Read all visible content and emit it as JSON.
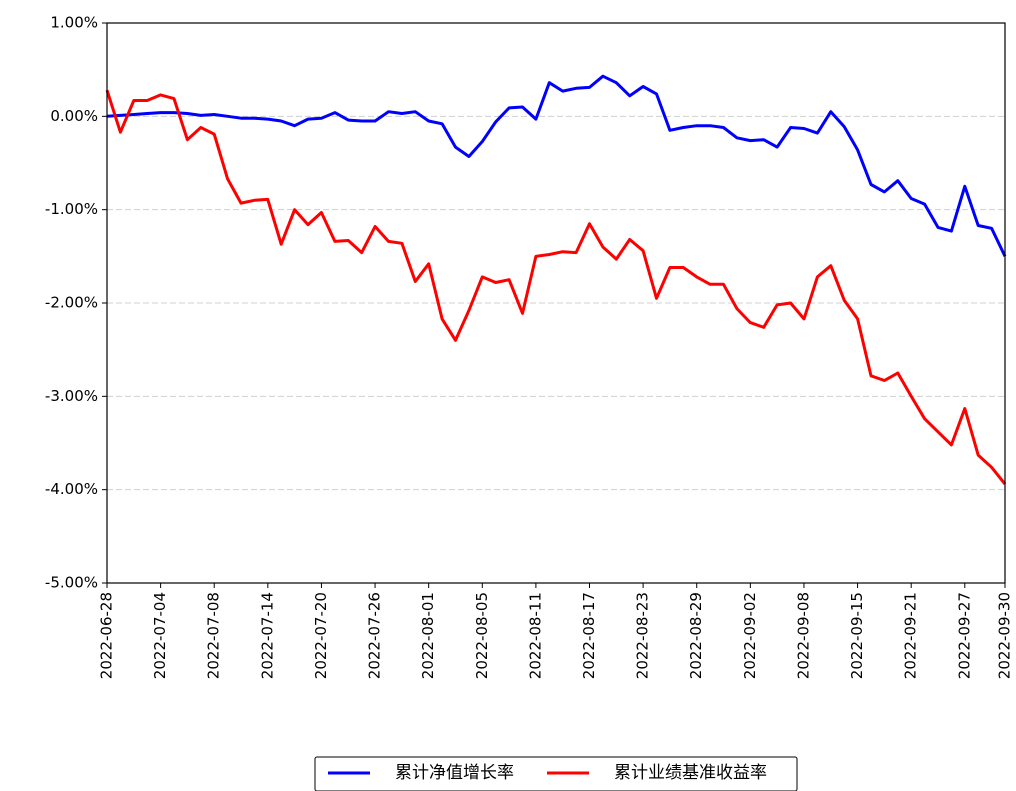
{
  "chart_data": {
    "type": "line",
    "categories": [
      "2022-06-28",
      null,
      null,
      null,
      "2022-07-04",
      null,
      null,
      null,
      "2022-07-08",
      null,
      null,
      null,
      "2022-07-14",
      null,
      null,
      null,
      "2022-07-20",
      null,
      null,
      null,
      "2022-07-26",
      null,
      null,
      null,
      "2022-08-01",
      null,
      null,
      null,
      "2022-08-05",
      null,
      null,
      null,
      "2022-08-11",
      null,
      null,
      null,
      "2022-08-17",
      null,
      null,
      null,
      "2022-08-23",
      null,
      null,
      null,
      "2022-08-29",
      null,
      null,
      null,
      "2022-09-02",
      null,
      null,
      null,
      "2022-09-08",
      null,
      null,
      null,
      "2022-09-15",
      null,
      null,
      null,
      "2022-09-21",
      null,
      null,
      null,
      "2022-09-27",
      null,
      null,
      "2022-09-30"
    ],
    "series": [
      {
        "name": "累计净值增长率",
        "color": "#0000ff",
        "values": [
          0.0,
          0.01,
          0.02,
          0.03,
          0.04,
          0.04,
          0.03,
          0.01,
          0.02,
          0.0,
          -0.02,
          -0.02,
          -0.03,
          -0.05,
          -0.1,
          -0.03,
          -0.02,
          0.04,
          -0.04,
          -0.05,
          -0.05,
          0.05,
          0.03,
          0.05,
          -0.05,
          -0.08,
          -0.33,
          -0.43,
          -0.27,
          -0.06,
          0.09,
          0.1,
          -0.03,
          0.36,
          0.27,
          0.3,
          0.31,
          0.43,
          0.36,
          0.22,
          0.32,
          0.24,
          -0.15,
          -0.12,
          -0.1,
          -0.1,
          -0.12,
          -0.23,
          -0.26,
          -0.25,
          -0.33,
          -0.12,
          -0.13,
          -0.18,
          0.05,
          -0.11,
          -0.36,
          -0.73,
          -0.81,
          -0.69,
          -0.88,
          -0.94,
          -1.19,
          -1.23,
          -0.75,
          -1.17,
          -1.2,
          -1.5
        ]
      },
      {
        "name": "累计业绩基准收益率",
        "color": "#ff0000",
        "values": [
          0.28,
          -0.17,
          0.17,
          0.17,
          0.23,
          0.19,
          -0.25,
          -0.12,
          -0.19,
          -0.67,
          -0.93,
          -0.9,
          -0.89,
          -1.37,
          -1.0,
          -1.16,
          -1.03,
          -1.34,
          -1.33,
          -1.46,
          -1.18,
          -1.34,
          -1.36,
          -1.77,
          -1.58,
          -2.17,
          -2.4,
          -2.08,
          -1.72,
          -1.78,
          -1.75,
          -2.11,
          -1.5,
          -1.48,
          -1.45,
          -1.46,
          -1.15,
          -1.4,
          -1.53,
          -1.32,
          -1.44,
          -1.95,
          -1.62,
          -1.62,
          -1.72,
          -1.8,
          -1.8,
          -2.06,
          -2.21,
          -2.26,
          -2.02,
          -2.0,
          -2.17,
          -1.72,
          -1.6,
          -1.97,
          -2.17,
          -2.78,
          -2.83,
          -2.75,
          -3.0,
          -3.24,
          -3.38,
          -3.52,
          -3.13,
          -3.63,
          -3.76,
          -3.94
        ]
      }
    ],
    "ylim": [
      -5,
      1
    ],
    "yticks": [
      {
        "value": 1,
        "label": "1.00%"
      },
      {
        "value": 0,
        "label": "0.00%"
      },
      {
        "value": -1,
        "label": "-1.00%"
      },
      {
        "value": -2,
        "label": "-2.00%"
      },
      {
        "value": -3,
        "label": "-3.00%"
      },
      {
        "value": -4,
        "label": "-4.00%"
      },
      {
        "value": -5,
        "label": "-5.00%"
      }
    ],
    "grid": true,
    "legend": "bottom"
  }
}
